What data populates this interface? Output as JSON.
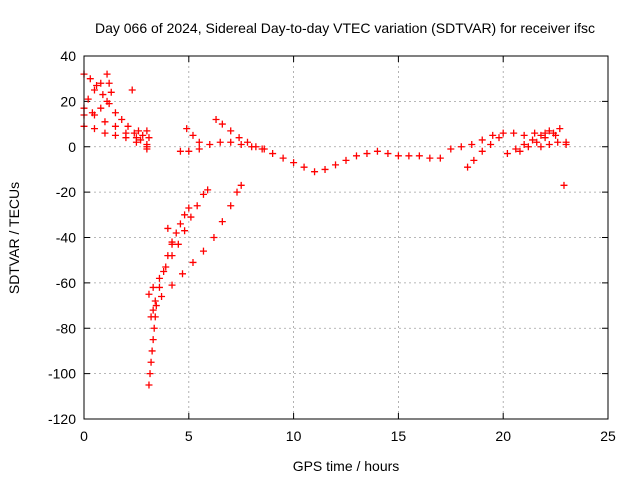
{
  "chart_data": {
    "type": "scatter",
    "title": "Day 066 of 2024, Sidereal Day-to-day VTEC variation (SDTVAR) for receiver ifsc",
    "xlabel": "GPS time / hours",
    "ylabel": "SDTVAR / TECUs",
    "xlim": [
      0,
      25
    ],
    "ylim": [
      -120,
      40
    ],
    "xticks": [
      "0",
      "5",
      "10",
      "15",
      "20",
      "25"
    ],
    "yticks": [
      "40",
      "20",
      "0",
      "-20",
      "-40",
      "-60",
      "-80",
      "-100",
      "-120"
    ],
    "grid": true,
    "marker": "plus",
    "color": "#ff0000",
    "series": [
      {
        "points": [
          [
            0.0,
            32
          ],
          [
            0.3,
            30
          ],
          [
            0.6,
            27
          ],
          [
            0.9,
            23
          ],
          [
            1.2,
            19
          ],
          [
            1.5,
            15
          ],
          [
            1.8,
            12
          ],
          [
            2.1,
            9
          ],
          [
            2.4,
            6
          ],
          [
            2.7,
            3
          ],
          [
            3.0,
            0
          ],
          [
            0.0,
            14
          ],
          [
            0.4,
            15
          ],
          [
            0.8,
            17
          ],
          [
            1.1,
            20
          ],
          [
            1.3,
            24
          ],
          [
            1.2,
            28
          ],
          [
            1.1,
            32
          ],
          [
            0.0,
            9
          ],
          [
            0.5,
            8
          ],
          [
            1.0,
            6
          ],
          [
            1.5,
            5
          ],
          [
            2.0,
            4
          ],
          [
            2.5,
            2
          ],
          [
            3.0,
            -1
          ],
          [
            0.0,
            17
          ],
          [
            0.5,
            14
          ],
          [
            1.0,
            11
          ],
          [
            1.5,
            9
          ],
          [
            2.0,
            6
          ],
          [
            2.5,
            4
          ],
          [
            3.0,
            1
          ],
          [
            0.2,
            21
          ],
          [
            0.5,
            25
          ],
          [
            0.8,
            28
          ],
          [
            2.6,
            7
          ],
          [
            2.8,
            5
          ],
          [
            3.0,
            7
          ],
          [
            3.1,
            4
          ],
          [
            2.3,
            25
          ],
          [
            22.9,
            -17
          ]
        ]
      },
      {
        "points": [
          [
            4.6,
            -2
          ],
          [
            5.0,
            -2
          ],
          [
            5.5,
            -1
          ],
          [
            6.0,
            1
          ],
          [
            6.5,
            2
          ],
          [
            7.0,
            2
          ],
          [
            7.5,
            1
          ],
          [
            8.0,
            0
          ],
          [
            8.5,
            -1
          ],
          [
            9.0,
            -3
          ],
          [
            9.5,
            -5
          ],
          [
            10.0,
            -7
          ],
          [
            10.5,
            -9
          ],
          [
            11.0,
            -11
          ],
          [
            11.5,
            -10
          ],
          [
            12.0,
            -8
          ],
          [
            12.5,
            -6
          ],
          [
            13.0,
            -4
          ],
          [
            13.5,
            -3
          ],
          [
            14.0,
            -2
          ],
          [
            14.5,
            -3
          ],
          [
            15.0,
            -4
          ],
          [
            15.5,
            -4
          ],
          [
            16.0,
            -4
          ],
          [
            16.5,
            -5
          ],
          [
            17.0,
            -5
          ],
          [
            17.5,
            -1
          ],
          [
            18.0,
            0
          ],
          [
            18.5,
            1
          ],
          [
            19.0,
            3
          ],
          [
            19.5,
            5
          ],
          [
            20.0,
            6
          ],
          [
            20.5,
            6
          ],
          [
            21.0,
            5
          ],
          [
            21.5,
            6
          ],
          [
            22.0,
            6
          ],
          [
            22.5,
            5
          ],
          [
            23.0,
            2
          ],
          [
            4.9,
            8
          ],
          [
            5.2,
            5
          ],
          [
            5.5,
            2
          ],
          [
            6.3,
            12
          ],
          [
            6.6,
            10
          ],
          [
            7.0,
            7
          ],
          [
            7.4,
            4
          ],
          [
            7.8,
            2
          ],
          [
            8.2,
            0
          ],
          [
            8.6,
            -1
          ],
          [
            18.3,
            -9
          ],
          [
            18.6,
            -6
          ],
          [
            19.0,
            -2
          ],
          [
            19.4,
            1
          ],
          [
            19.8,
            4
          ],
          [
            20.2,
            -3
          ],
          [
            20.6,
            -1
          ],
          [
            21.0,
            1
          ],
          [
            21.4,
            3
          ],
          [
            21.8,
            5
          ],
          [
            22.2,
            7
          ],
          [
            20.8,
            -2
          ],
          [
            21.2,
            0
          ],
          [
            21.6,
            2
          ],
          [
            22.0,
            4
          ],
          [
            22.4,
            6
          ],
          [
            22.7,
            8
          ],
          [
            21.8,
            0
          ],
          [
            22.2,
            1
          ],
          [
            22.6,
            2
          ],
          [
            23.0,
            1
          ]
        ]
      },
      {
        "points": [
          [
            3.1,
            -65
          ],
          [
            3.3,
            -62
          ],
          [
            3.6,
            -58
          ],
          [
            3.9,
            -53
          ],
          [
            4.2,
            -48
          ],
          [
            4.5,
            -43
          ],
          [
            4.8,
            -37
          ],
          [
            5.1,
            -31
          ],
          [
            5.4,
            -26
          ],
          [
            5.7,
            -21
          ],
          [
            5.9,
            -19
          ],
          [
            3.2,
            -75
          ],
          [
            3.4,
            -68
          ],
          [
            3.6,
            -62
          ],
          [
            3.8,
            -55
          ],
          [
            4.0,
            -48
          ],
          [
            4.2,
            -43
          ],
          [
            4.4,
            -38
          ],
          [
            4.6,
            -34
          ],
          [
            4.8,
            -30
          ],
          [
            5.0,
            -27
          ],
          [
            3.3,
            -72
          ],
          [
            3.7,
            -66
          ],
          [
            4.2,
            -61
          ],
          [
            4.7,
            -56
          ],
          [
            5.2,
            -51
          ],
          [
            5.7,
            -46
          ],
          [
            6.2,
            -40
          ],
          [
            6.6,
            -33
          ],
          [
            7.0,
            -26
          ],
          [
            7.3,
            -20
          ],
          [
            7.5,
            -17
          ],
          [
            3.1,
            -105
          ],
          [
            3.15,
            -100
          ],
          [
            3.2,
            -95
          ],
          [
            3.25,
            -90
          ],
          [
            3.3,
            -85
          ],
          [
            3.35,
            -80
          ],
          [
            3.4,
            -75
          ],
          [
            3.45,
            -70
          ],
          [
            4.0,
            -36
          ],
          [
            4.2,
            -42
          ]
        ]
      }
    ]
  }
}
